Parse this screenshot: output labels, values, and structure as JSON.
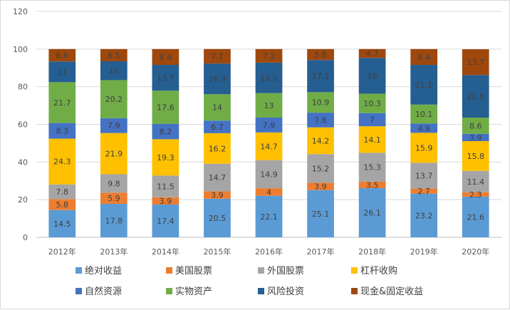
{
  "chart_data": {
    "type": "bar",
    "stacked": true,
    "categories": [
      "2012年",
      "2013年",
      "2014年",
      "2015年",
      "2016年",
      "2017年",
      "2018年",
      "2019年",
      "2020年"
    ],
    "ylim": [
      0,
      120
    ],
    "yticks": [
      0,
      20,
      40,
      60,
      80,
      100,
      120
    ],
    "grid": true,
    "legend_position": "bottom",
    "series": [
      {
        "name": "绝对收益",
        "color": "#5B9BD5",
        "values": [
          14.5,
          17.8,
          17.4,
          20.5,
          22.1,
          25.1,
          26.1,
          23.2,
          21.6
        ]
      },
      {
        "name": "美国股票",
        "color": "#ED7D31",
        "values": [
          5.8,
          5.9,
          3.9,
          3.9,
          4,
          3.9,
          3.5,
          2.7,
          2.3
        ]
      },
      {
        "name": "外国股票",
        "color": "#A5A5A5",
        "values": [
          7.8,
          9.8,
          11.5,
          14.7,
          14.9,
          15.2,
          15.3,
          13.7,
          11.4
        ]
      },
      {
        "name": "杠杆收购",
        "color": "#FFC000",
        "values": [
          24.3,
          21.9,
          19.3,
          16.2,
          14.7,
          14.2,
          14.1,
          15.9,
          15.8
        ]
      },
      {
        "name": "自然资源",
        "color": "#4472C4",
        "values": [
          8.3,
          7.9,
          8.2,
          6.7,
          7.9,
          7.8,
          7,
          4.9,
          3.9
        ]
      },
      {
        "name": "实物资产",
        "color": "#70AD47",
        "values": [
          21.7,
          20.2,
          17.6,
          14,
          13,
          10.9,
          10.3,
          10.1,
          8.6
        ]
      },
      {
        "name": "风险投资",
        "color": "#255E91",
        "values": [
          11,
          10,
          13.7,
          16.3,
          16.2,
          17.1,
          19,
          21.1,
          22.6
        ]
      },
      {
        "name": "现金&固定收益",
        "color": "#9E480E",
        "values": [
          6.6,
          6.5,
          8.4,
          7.7,
          7.2,
          5.8,
          4.7,
          8.4,
          13.7
        ]
      }
    ]
  }
}
